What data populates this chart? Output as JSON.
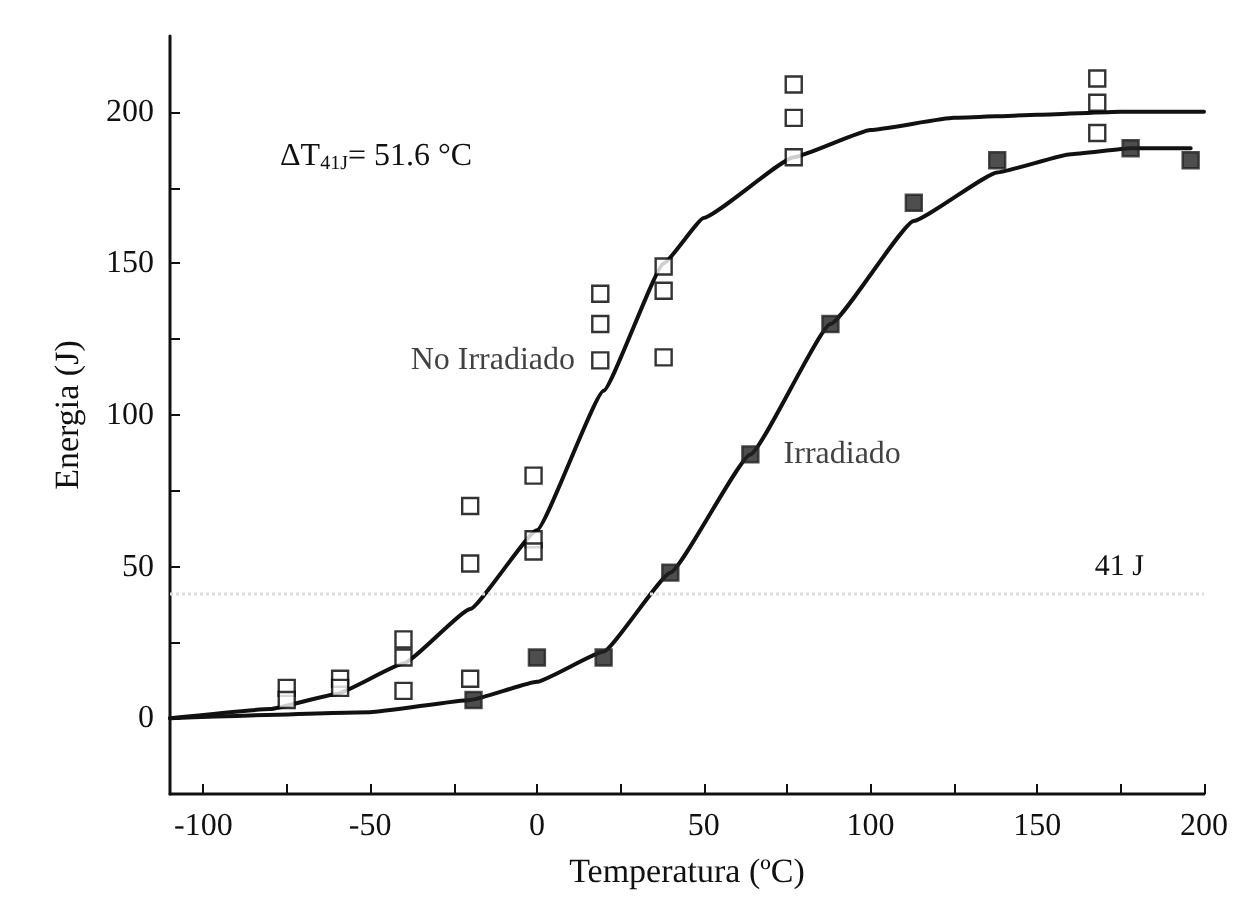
{
  "chart_data": {
    "type": "scatter",
    "xlabel": "Temperatura (ºC)",
    "ylabel": "Energia (J)",
    "annotations": [
      "ΔT$_{41J}$= 51.6 °C"
    ],
    "xlim": [
      -110,
      200
    ],
    "ylim": [
      -25,
      225
    ],
    "xticks": [
      -100,
      {
        "value": -75,
        "label": null
      },
      -50,
      {
        "value": -25,
        "label": null
      },
      0,
      {
        "value": 25,
        "label": null
      },
      50,
      {
        "value": 75,
        "label": null
      },
      100,
      {
        "value": 125,
        "label": null
      },
      150,
      {
        "value": 175,
        "label": null
      },
      200
    ],
    "yticks": [
      0,
      {
        "value": 25,
        "label": null
      },
      50,
      {
        "value": 75,
        "label": null
      },
      100,
      {
        "value": 125,
        "label": null
      },
      150,
      {
        "value": 175,
        "label": null
      },
      200
    ],
    "grid": false,
    "legend": false,
    "marker": "square",
    "ref_lines": [
      {
        "axis": "y",
        "value": 41,
        "label": "41 J",
        "color": "#dddddd",
        "line_style": "dotted"
      }
    ],
    "series": [
      {
        "name": "No Irradiado",
        "color": "#000000",
        "x": [
          -75,
          -75,
          -59,
          -59,
          -40,
          -40,
          -40,
          -20,
          -20,
          -20,
          -1,
          -1,
          -1,
          19,
          19,
          19,
          38,
          38,
          38,
          77,
          77,
          77,
          168,
          168,
          168
        ],
        "values": [
          10,
          6,
          13,
          10,
          26,
          20,
          9,
          70,
          51,
          13,
          80,
          59,
          55,
          140,
          130,
          118,
          149,
          141,
          119,
          209,
          198,
          185,
          211,
          203,
          193
        ]
      },
      {
        "name": "Irradiado",
        "color": "#222222",
        "x": [
          -19,
          0,
          20,
          40,
          64,
          88,
          113,
          138,
          178,
          196
        ],
        "values": [
          6,
          20,
          20,
          48,
          87,
          130,
          170,
          184,
          188,
          184
        ]
      },
      {
        "type": "line",
        "marker": "none",
        "color": "#111111",
        "x": [
          -110,
          -80,
          -60,
          -40,
          -20,
          0,
          20,
          38,
          50,
          77,
          100,
          125,
          150,
          175,
          200
        ],
        "values": [
          0,
          3,
          8,
          18,
          36,
          62,
          108,
          150,
          165,
          185,
          194,
          198,
          199,
          200,
          200
        ]
      },
      {
        "type": "line",
        "marker": "none",
        "color": "#111111",
        "x": [
          -110,
          -50,
          -20,
          0,
          20,
          40,
          64,
          88,
          113,
          138,
          160,
          178,
          196
        ],
        "values": [
          0,
          2,
          6,
          12,
          22,
          48,
          87,
          130,
          164,
          180,
          186,
          188,
          188
        ]
      }
    ]
  }
}
